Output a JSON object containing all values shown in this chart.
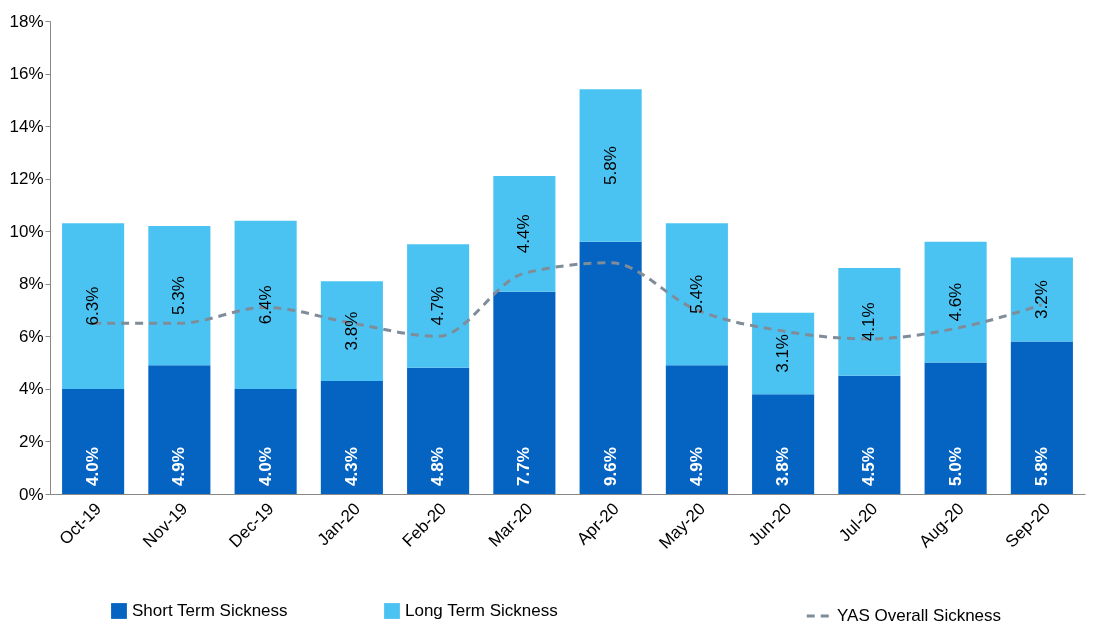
{
  "chart_data": {
    "type": "bar",
    "stacked": true,
    "categories": [
      "Oct-19",
      "Nov-19",
      "Dec-19",
      "Jan-20",
      "Feb-20",
      "Mar-20",
      "Apr-20",
      "May-20",
      "Jun-20",
      "Jul-20",
      "Aug-20",
      "Sep-20"
    ],
    "series": [
      {
        "name": "Short Term Sickness",
        "color": "#0563c1",
        "values": [
          4.0,
          4.9,
          4.0,
          4.3,
          4.8,
          7.7,
          9.6,
          4.9,
          3.8,
          4.5,
          5.0,
          5.8
        ],
        "value_labels": [
          "4.0%",
          "4.9%",
          "4.0%",
          "4.3%",
          "4.8%",
          "7.7%",
          "9.6%",
          "4.9%",
          "3.8%",
          "4.5%",
          "5.0%",
          "5.8%"
        ]
      },
      {
        "name": "Long Term Sickness",
        "color": "#4bc3f2",
        "values": [
          6.3,
          5.3,
          6.4,
          3.8,
          4.7,
          4.4,
          5.8,
          5.4,
          3.1,
          4.1,
          4.6,
          3.2
        ],
        "value_labels": [
          "6.3%",
          "5.3%",
          "6.4%",
          "3.8%",
          "4.7%",
          "4.4%",
          "5.8%",
          "5.4%",
          "3.1%",
          "4.1%",
          "4.6%",
          "3.2%"
        ]
      },
      {
        "name": "YAS Overall Sickness",
        "type": "line",
        "color": "#7f8c99",
        "line_style": "dashed",
        "values": [
          6.5,
          6.5,
          7.1,
          6.5,
          6.0,
          8.4,
          8.8,
          7.0,
          6.2,
          5.9,
          6.3,
          7.2
        ]
      }
    ],
    "ylim": [
      0,
      18
    ],
    "yticks": [
      {
        "value": 0,
        "label": "0%"
      },
      {
        "value": 2,
        "label": "2%"
      },
      {
        "value": 4,
        "label": "4%"
      },
      {
        "value": 6,
        "label": "6%"
      },
      {
        "value": 8,
        "label": "8%"
      },
      {
        "value": 10,
        "label": "10%"
      },
      {
        "value": 12,
        "label": "12%"
      },
      {
        "value": 14,
        "label": "14%"
      },
      {
        "value": 16,
        "label": "16%"
      },
      {
        "value": 18,
        "label": "18%"
      }
    ],
    "grid": false,
    "legend": "bottom"
  }
}
